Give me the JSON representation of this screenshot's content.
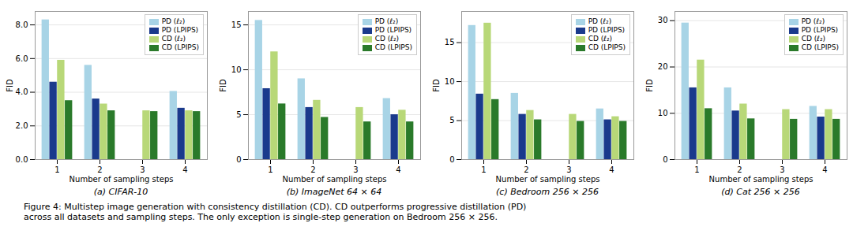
{
  "chart_data": [
    {
      "type": "bar",
      "title": "(a) CIFAR-10",
      "xlabel": "Number of sampling steps",
      "ylabel": "FID",
      "categories": [
        "1",
        "2",
        "3",
        "4"
      ],
      "series": [
        {
          "name": "PD (ℓ₂)",
          "color": "#a8d4e6",
          "values": [
            8.3,
            5.6,
            null,
            4.05
          ]
        },
        {
          "name": "PD (LPIPS)",
          "color": "#1a3a8c",
          "values": [
            4.6,
            3.6,
            null,
            3.05
          ]
        },
        {
          "name": "CD (ℓ₂)",
          "color": "#b8d878",
          "values": [
            5.9,
            3.3,
            2.9,
            2.9
          ]
        },
        {
          "name": "CD (LPIPS)",
          "color": "#2a7a2a",
          "values": [
            3.5,
            2.9,
            2.85,
            2.85
          ]
        }
      ],
      "ylim": [
        0,
        8.8
      ],
      "yticks": [
        {
          "value": 0,
          "label": "0.0"
        },
        {
          "value": 2,
          "label": "2.0"
        },
        {
          "value": 4,
          "label": "4.0"
        },
        {
          "value": 6,
          "label": "6.0"
        },
        {
          "value": 8,
          "label": "8.0"
        }
      ],
      "grid": true,
      "legend": "upper right"
    },
    {
      "type": "bar",
      "title": "(b) ImageNet 64 × 64",
      "xlabel": "Number of sampling steps",
      "ylabel": "FID",
      "categories": [
        "1",
        "2",
        "3",
        "4"
      ],
      "series": [
        {
          "name": "PD (ℓ₂)",
          "color": "#a8d4e6",
          "values": [
            15.5,
            9.0,
            null,
            6.8
          ]
        },
        {
          "name": "PD (LPIPS)",
          "color": "#1a3a8c",
          "values": [
            7.9,
            5.8,
            null,
            5.0
          ]
        },
        {
          "name": "CD (ℓ₂)",
          "color": "#b8d878",
          "values": [
            12.0,
            6.6,
            5.8,
            5.5
          ]
        },
        {
          "name": "CD (LPIPS)",
          "color": "#2a7a2a",
          "values": [
            6.2,
            4.7,
            4.2,
            4.2
          ]
        }
      ],
      "ylim": [
        0,
        16.5
      ],
      "yticks": [
        0,
        5,
        10,
        15
      ],
      "grid": true,
      "legend": "upper right"
    },
    {
      "type": "bar",
      "title": "(c) Bedroom 256 × 256",
      "xlabel": "Number of sampling steps",
      "ylabel": "FID",
      "categories": [
        "1",
        "2",
        "3",
        "4"
      ],
      "series": [
        {
          "name": "PD (ℓ₂)",
          "color": "#a8d4e6",
          "values": [
            17.2,
            8.5,
            null,
            6.5
          ]
        },
        {
          "name": "PD (LPIPS)",
          "color": "#1a3a8c",
          "values": [
            8.4,
            5.8,
            null,
            5.1
          ]
        },
        {
          "name": "CD (ℓ₂)",
          "color": "#b8d878",
          "values": [
            17.5,
            6.3,
            5.8,
            5.5
          ]
        },
        {
          "name": "CD (LPIPS)",
          "color": "#2a7a2a",
          "values": [
            7.7,
            5.1,
            4.9,
            4.9
          ]
        }
      ],
      "ylim": [
        0,
        19.0
      ],
      "yticks": [
        0,
        5,
        10,
        15
      ],
      "grid": true,
      "legend": "upper right"
    },
    {
      "type": "bar",
      "title": "(d) Cat 256 × 256",
      "xlabel": "Number of sampling steps",
      "ylabel": "FID",
      "categories": [
        "1",
        "2",
        "3",
        "4"
      ],
      "series": [
        {
          "name": "PD (ℓ₂)",
          "color": "#a8d4e6",
          "values": [
            29.5,
            15.5,
            null,
            11.5
          ]
        },
        {
          "name": "PD (LPIPS)",
          "color": "#1a3a8c",
          "values": [
            15.5,
            10.5,
            null,
            9.2
          ]
        },
        {
          "name": "CD (ℓ₂)",
          "color": "#b8d878",
          "values": [
            21.5,
            12.0,
            10.8,
            10.8
          ]
        },
        {
          "name": "CD (LPIPS)",
          "color": "#2a7a2a",
          "values": [
            11.0,
            8.8,
            8.7,
            8.7
          ]
        }
      ],
      "ylim": [
        0,
        32
      ],
      "yticks": [
        0,
        10,
        20,
        30
      ],
      "grid": true,
      "legend": "upper right"
    }
  ],
  "caption": "Figure 4: Multistep image generation with consistency distillation (CD). CD outperforms progressive distillation (PD)\nacross all datasets and sampling steps. The only exception is single-step generation on Bedroom 256 × 256."
}
